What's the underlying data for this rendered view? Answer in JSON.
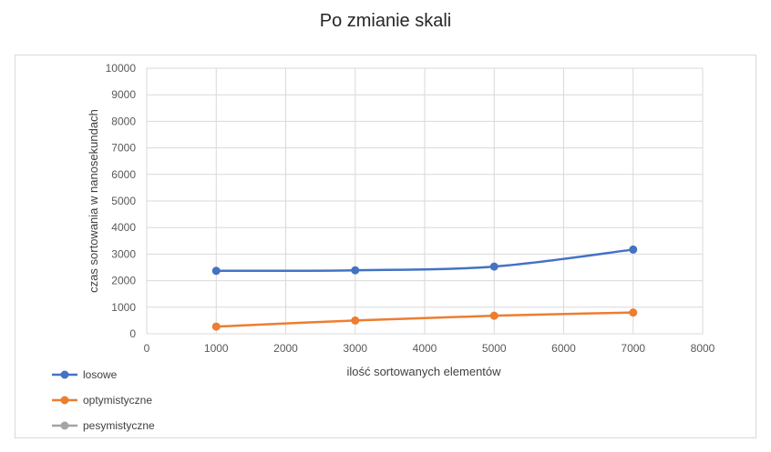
{
  "chart_data": {
    "type": "line",
    "title": "Po zmianie skali",
    "xlabel": "ilość sortowanych elementów",
    "ylabel": "czas sortowania w nanosekundach",
    "xlim": [
      0,
      8000
    ],
    "ylim": [
      0,
      10000
    ],
    "xticks": [
      "0",
      "1000",
      "2000",
      "3000",
      "4000",
      "5000",
      "6000",
      "7000",
      "8000"
    ],
    "yticks": [
      "0",
      "1000",
      "2000",
      "3000",
      "4000",
      "5000",
      "6000",
      "7000",
      "8000",
      "9000",
      "10000"
    ],
    "grid": true,
    "smooth": true,
    "legend_position": "bottom-left",
    "series": [
      {
        "name": "losowe",
        "color": "#4472c4",
        "x": [
          1000,
          3000,
          5000,
          7000
        ],
        "y": [
          2370,
          2390,
          2530,
          3170
        ]
      },
      {
        "name": "optymistyczne",
        "color": "#ed7d31",
        "x": [
          1000,
          3000,
          5000,
          7000
        ],
        "y": [
          270,
          500,
          680,
          800
        ]
      },
      {
        "name": "pesymistyczne",
        "color": "#a5a5a5",
        "x": [],
        "y": []
      }
    ]
  }
}
